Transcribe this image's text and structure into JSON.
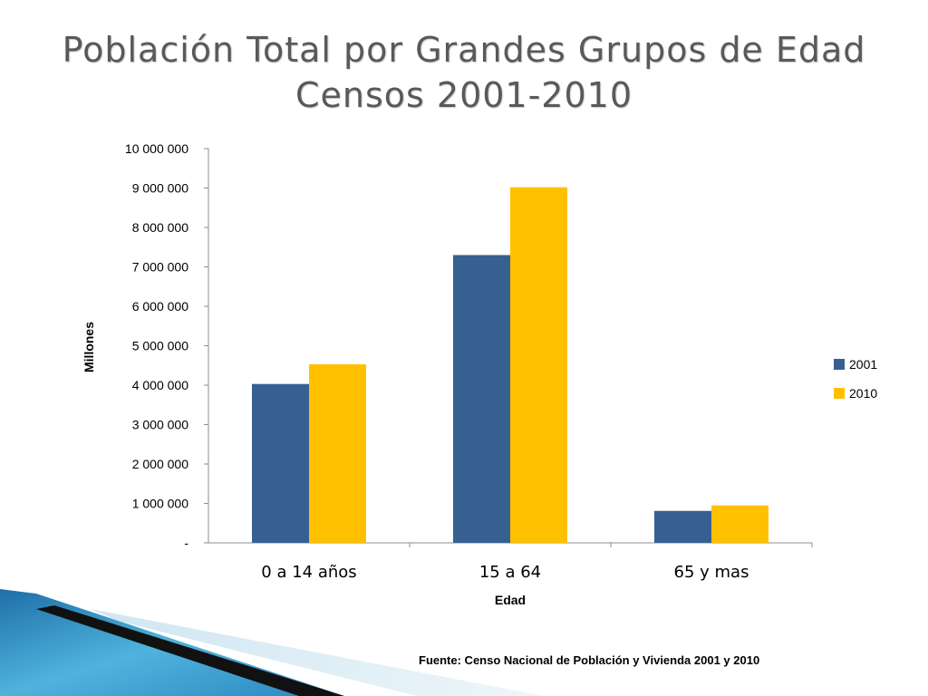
{
  "title_lines": [
    "Población Total por Grandes Grupos de Edad",
    "Censos 2001-2010"
  ],
  "source": "Fuente: Censo Nacional de Población y Vivienda 2001 y 2010",
  "colors": {
    "2001": "#376092",
    "2010": "#FFC000",
    "axis": "#8c8c8c"
  },
  "chart_data": {
    "type": "bar",
    "categories": [
      "0 a 14 años",
      "15 a 64",
      "65 y mas"
    ],
    "series": [
      {
        "name": "2001",
        "values": [
          4030000,
          7300000,
          810000
        ]
      },
      {
        "name": "2010",
        "values": [
          4530000,
          9020000,
          950000
        ]
      }
    ],
    "xlabel": "Edad",
    "ylabel": "Millones",
    "ylim": [
      0,
      10000000
    ],
    "yticks": [
      0,
      1000000,
      2000000,
      3000000,
      4000000,
      5000000,
      6000000,
      7000000,
      8000000,
      9000000,
      10000000
    ],
    "ytick_labels": [
      "-",
      "1 000 000",
      "2 000 000",
      "3 000 000",
      "4 000 000",
      "5 000 000",
      "6 000 000",
      "7 000 000",
      "8 000 000",
      "9 000 000",
      "10 000 000"
    ],
    "grid": false,
    "legend": "right"
  }
}
